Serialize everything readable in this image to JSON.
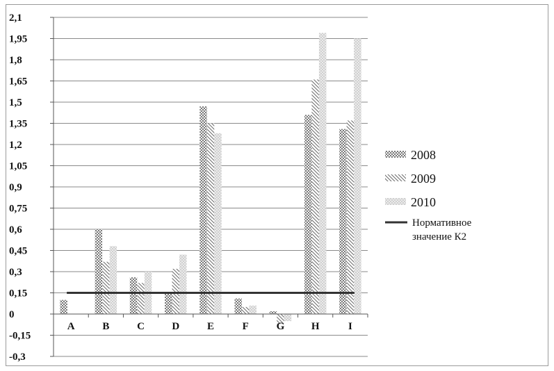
{
  "chart_data": {
    "type": "bar",
    "categories": [
      "A",
      "B",
      "C",
      "D",
      "E",
      "F",
      "G",
      "H",
      "I"
    ],
    "series": [
      {
        "name": "2008",
        "values": [
          0.1,
          0.6,
          0.26,
          0.15,
          1.47,
          0.11,
          0.02,
          1.41,
          1.31
        ]
      },
      {
        "name": "2009",
        "values": [
          0.0,
          0.37,
          0.22,
          0.32,
          1.35,
          0.05,
          -0.07,
          1.66,
          1.37
        ]
      },
      {
        "name": "2010",
        "values": [
          0.0,
          0.48,
          0.3,
          0.42,
          1.28,
          0.06,
          -0.05,
          1.99,
          1.95
        ]
      }
    ],
    "reference_line": {
      "name": "Нормативное значение К2",
      "value": 0.15
    },
    "y_ticks": [
      "2,1",
      "1,95",
      "1,8",
      "1,65",
      "1,5",
      "1,35",
      "1,2",
      "1,05",
      "0,9",
      "0,75",
      "0,6",
      "0,45",
      "0,3",
      "0,15",
      "0",
      "-0,15",
      "-0,3"
    ],
    "ylim": [
      -0.3,
      2.1
    ],
    "grid": true,
    "legend_position": "right",
    "colors": {
      "axis": "#555555",
      "grid": "#8a8a8a",
      "bar": "#8c8c8c",
      "reference_line": "#333333"
    }
  },
  "legend": {
    "items": [
      "2008",
      "2009",
      "2010"
    ],
    "reference_line_lines": [
      "Нормативное",
      "значение К2"
    ]
  }
}
